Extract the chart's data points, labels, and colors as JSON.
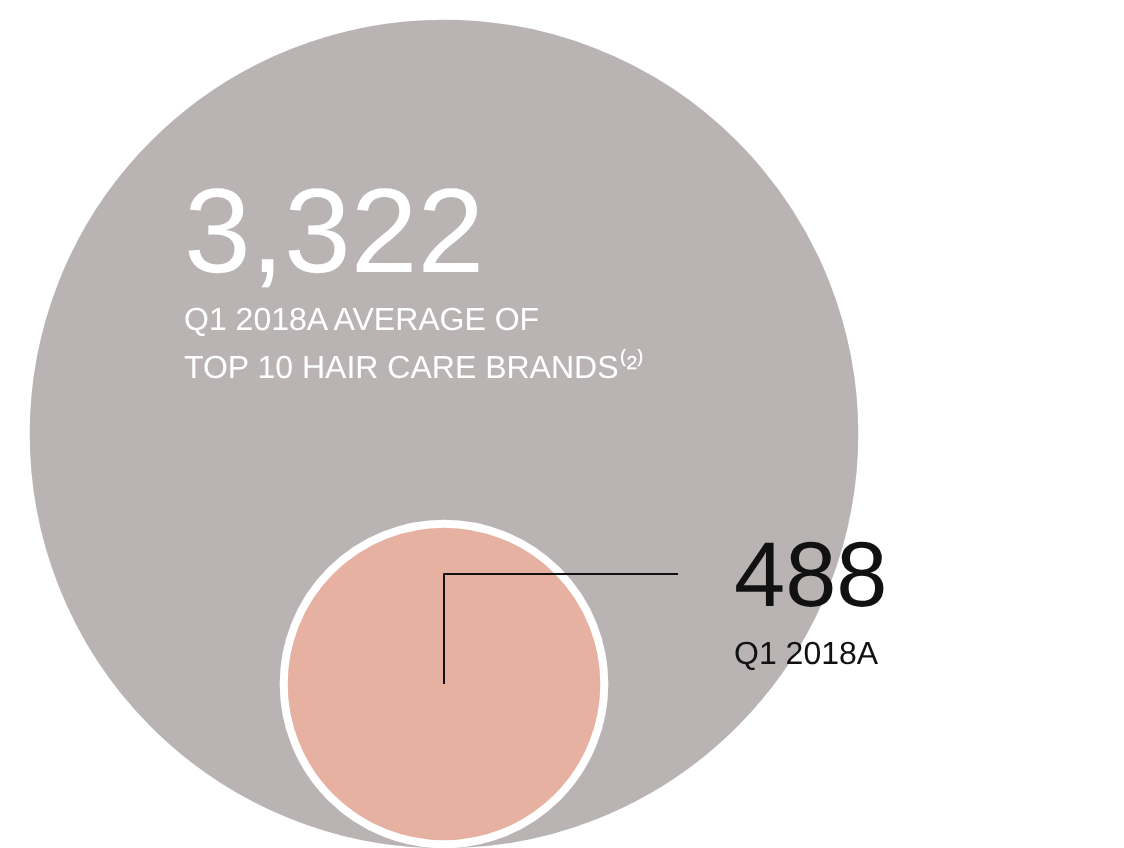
{
  "chart_data": {
    "type": "other",
    "categories": [
      "Q1 2018A AVERAGE OF\nTOP 10 HAIR CARE BRANDS⁽²⁾",
      "Q1 2018A"
    ],
    "values": [
      3322,
      488
    ],
    "value_labels": [
      "3,322",
      "488"
    ],
    "colors": [
      "#b9b3b4",
      "#e6b1a0"
    ]
  }
}
